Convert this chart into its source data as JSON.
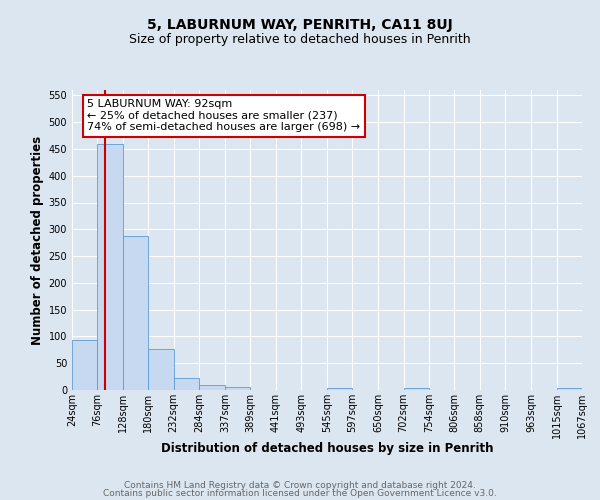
{
  "title": "5, LABURNUM WAY, PENRITH, CA11 8UJ",
  "subtitle": "Size of property relative to detached houses in Penrith",
  "xlabel": "Distribution of detached houses by size in Penrith",
  "ylabel": "Number of detached properties",
  "bin_edges": [
    24,
    76,
    128,
    180,
    232,
    284,
    337,
    389,
    441,
    493,
    545,
    597,
    650,
    702,
    754,
    806,
    858,
    910,
    963,
    1015,
    1067
  ],
  "bin_counts": [
    93,
    460,
    288,
    76,
    22,
    10,
    5,
    0,
    0,
    0,
    4,
    0,
    0,
    4,
    0,
    0,
    0,
    0,
    0,
    4
  ],
  "property_size": 92,
  "bar_color": "#c6d9f0",
  "bar_edge_color": "#5b9bd5",
  "vline_color": "#cc0000",
  "annotation_line1": "5 LABURNUM WAY: 92sqm",
  "annotation_line2": "← 25% of detached houses are smaller (237)",
  "annotation_line3": "74% of semi-detached houses are larger (698) →",
  "annotation_box_color": "#ffffff",
  "annotation_box_edge_color": "#cc0000",
  "ylim": [
    0,
    560
  ],
  "yticks": [
    0,
    50,
    100,
    150,
    200,
    250,
    300,
    350,
    400,
    450,
    500,
    550
  ],
  "tick_labels": [
    "24sqm",
    "76sqm",
    "128sqm",
    "180sqm",
    "232sqm",
    "284sqm",
    "337sqm",
    "389sqm",
    "441sqm",
    "493sqm",
    "545sqm",
    "597sqm",
    "650sqm",
    "702sqm",
    "754sqm",
    "806sqm",
    "858sqm",
    "910sqm",
    "963sqm",
    "1015sqm",
    "1067sqm"
  ],
  "footer_line1": "Contains HM Land Registry data © Crown copyright and database right 2024.",
  "footer_line2": "Contains public sector information licensed under the Open Government Licence v3.0.",
  "background_color": "#dce6f1",
  "plot_bg_color": "#dce6f1",
  "grid_color": "#ffffff",
  "title_fontsize": 10,
  "subtitle_fontsize": 9,
  "axis_label_fontsize": 8.5,
  "tick_fontsize": 7,
  "annotation_fontsize": 8,
  "footer_fontsize": 6.5
}
